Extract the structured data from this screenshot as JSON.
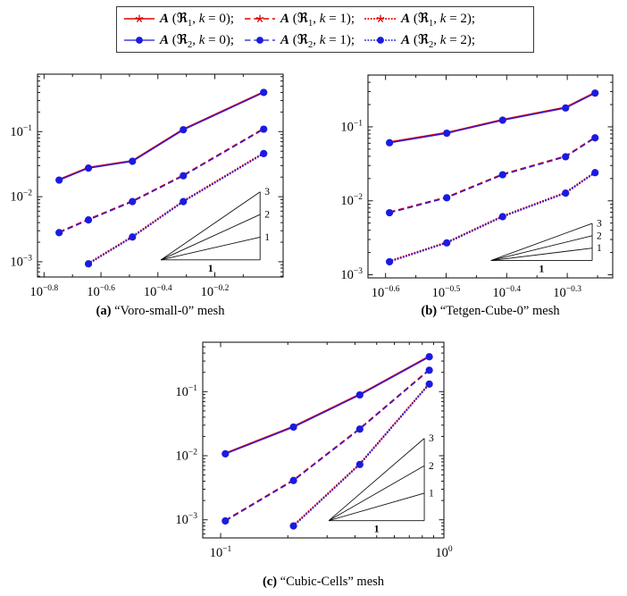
{
  "colors": {
    "series_red": "#dd0000",
    "line_top": "#3a12d0",
    "marker_blue": "#1b1be0",
    "axis": "#1a1a1a",
    "triangle": "#111111",
    "legend_border": "#3a3a3a"
  },
  "legend": {
    "position": "top-center, shared by all subplots",
    "punct": {
      "open": " (",
      "comma": ", ",
      "eq": " = ",
      "close": ");"
    },
    "rows": [
      {
        "items": [
          {
            "text": "A (ℜ₁, k = 0);",
            "A": "A",
            "family": "ℜ",
            "sub": "1",
            "k": "k",
            "val": "0",
            "line": "solid",
            "color": "#dd0000",
            "marker": "star"
          },
          {
            "text": "A (ℜ₁, k = 1);",
            "A": "A",
            "family": "ℜ",
            "sub": "1",
            "k": "k",
            "val": "1",
            "line": "dashed",
            "color": "#dd0000",
            "marker": "star"
          },
          {
            "text": "A (ℜ₁, k = 2);",
            "A": "A",
            "family": "ℜ",
            "sub": "1",
            "k": "k",
            "val": "2",
            "line": "dotted",
            "color": "#dd0000",
            "marker": "star"
          }
        ]
      },
      {
        "items": [
          {
            "text": "A (ℜ₂, k = 0);",
            "A": "A",
            "family": "ℜ",
            "sub": "2",
            "k": "k",
            "val": "0",
            "line": "solid",
            "color": "#4040e0",
            "marker": "circle"
          },
          {
            "text": "A (ℜ₂, k = 1);",
            "A": "A",
            "family": "ℜ",
            "sub": "2",
            "k": "k",
            "val": "1",
            "line": "dashed",
            "color": "#4040e0",
            "marker": "circle"
          },
          {
            "text": "A (ℜ₂, k = 2);",
            "A": "A",
            "family": "ℜ",
            "sub": "2",
            "k": "k",
            "val": "2",
            "line": "dotted",
            "color": "#4040e0",
            "marker": "circle"
          }
        ]
      }
    ]
  },
  "chart_data": [
    {
      "id": "a",
      "type": "line",
      "caption_tag": "(a)",
      "caption_text": "“Voro-small-0” mesh",
      "xscale": "log",
      "yscale": "log",
      "grid": false,
      "xlim_log": [
        -0.823,
        0.04
      ],
      "ylim_log": [
        -3.234,
        -0.117
      ],
      "xticks": [
        -0.8,
        -0.6,
        -0.4,
        -0.2
      ],
      "xticks_minor": [
        -0.7,
        -0.5,
        -0.3,
        -0.1
      ],
      "yticks": [
        -1,
        -2,
        -3
      ],
      "x": [
        0.179,
        0.227,
        0.324,
        0.489,
        0.937
      ],
      "series": [
        {
          "names": [
            "A (ℜ₁, k = 0)",
            "A (ℜ₂, k = 0)"
          ],
          "style": "solid",
          "values": [
            0.018,
            0.0275,
            0.035,
            0.107,
            0.4
          ]
        },
        {
          "names": [
            "A (ℜ₁, k = 1)",
            "A (ℜ₂, k = 1)"
          ],
          "style": "dashed",
          "values": [
            0.0028,
            0.0044,
            0.0084,
            0.021,
            0.109
          ]
        },
        {
          "names": [
            "A (ℜ₁, k = 2)",
            "A (ℜ₂, k = 2)"
          ],
          "style": "dotted",
          "values": [
            null,
            0.00093,
            0.0024,
            0.0084,
            0.046
          ]
        }
      ],
      "slope_triangle": {
        "x0": 0.408,
        "x1": 0.91,
        "y_base": 0.00107,
        "slopes": [
          1,
          2,
          3
        ],
        "base_label": "1"
      }
    },
    {
      "id": "b",
      "type": "line",
      "caption_tag": "(b)",
      "caption_text": "“Tetgen-Cube-0” mesh",
      "xscale": "log",
      "yscale": "log",
      "grid": false,
      "xlim_log": [
        -0.629,
        -0.225
      ],
      "ylim_log": [
        -3.042,
        -0.3
      ],
      "xticks": [
        -0.6,
        -0.5,
        -0.4,
        -0.3
      ],
      "xticks_minor": [
        -0.55,
        -0.45,
        -0.35,
        -0.25
      ],
      "yticks": [
        -1,
        -2,
        -3
      ],
      "x": [
        0.255,
        0.317,
        0.392,
        0.498,
        0.557
      ],
      "series": [
        {
          "names": [
            "A (ℜ₁, k = 0)",
            "A (ℜ₂, k = 0)"
          ],
          "style": "solid",
          "values": [
            0.061,
            0.082,
            0.123,
            0.18,
            0.286
          ]
        },
        {
          "names": [
            "A (ℜ₁, k = 1)",
            "A (ℜ₂, k = 1)"
          ],
          "style": "dashed",
          "values": [
            0.0069,
            0.011,
            0.0225,
            0.0394,
            0.071
          ]
        },
        {
          "names": [
            "A (ℜ₁, k = 2)",
            "A (ℜ₂, k = 2)"
          ],
          "style": "dotted",
          "values": [
            0.0015,
            0.0027,
            0.0061,
            0.0127,
            0.024
          ]
        }
      ],
      "slope_triangle": {
        "x0": 0.375,
        "x1": 0.551,
        "y_base": 0.00156,
        "slopes": [
          1,
          2,
          3
        ],
        "base_label": "1"
      }
    },
    {
      "id": "c",
      "type": "line",
      "caption_tag": "(c)",
      "caption_text": "“Cubic-Cells” mesh",
      "xscale": "log",
      "yscale": "log",
      "grid": false,
      "xlim_log": [
        -1.08,
        0.0
      ],
      "ylim_log": [
        -3.283,
        -0.229
      ],
      "xticks": [
        -1,
        0
      ],
      "xticks_minor": [
        -0.699,
        -0.523,
        -0.398,
        -0.301,
        -0.222,
        -0.155,
        -0.097,
        -0.046
      ],
      "yticks": [
        -1,
        -2,
        -3
      ],
      "x": [
        0.105,
        0.212,
        0.42,
        0.86
      ],
      "series": [
        {
          "names": [
            "A (ℜ₁, k = 0)",
            "A (ℜ₂, k = 0)"
          ],
          "style": "solid",
          "values": [
            0.0107,
            0.028,
            0.089,
            0.35
          ]
        },
        {
          "names": [
            "A (ℜ₁, k = 1)",
            "A (ℜ₂, k = 1)"
          ],
          "style": "dashed",
          "values": [
            0.00096,
            0.0041,
            0.026,
            0.216
          ]
        },
        {
          "names": [
            "A (ℜ₁, k = 2)",
            "A (ℜ₂, k = 2)"
          ],
          "style": "dotted",
          "values": [
            null,
            0.0008,
            0.0073,
            0.131
          ]
        }
      ],
      "slope_triangle": {
        "x0": 0.305,
        "x1": 0.817,
        "y_base": 0.00097,
        "slopes": [
          1,
          2,
          3
        ],
        "base_label": "1"
      }
    }
  ]
}
